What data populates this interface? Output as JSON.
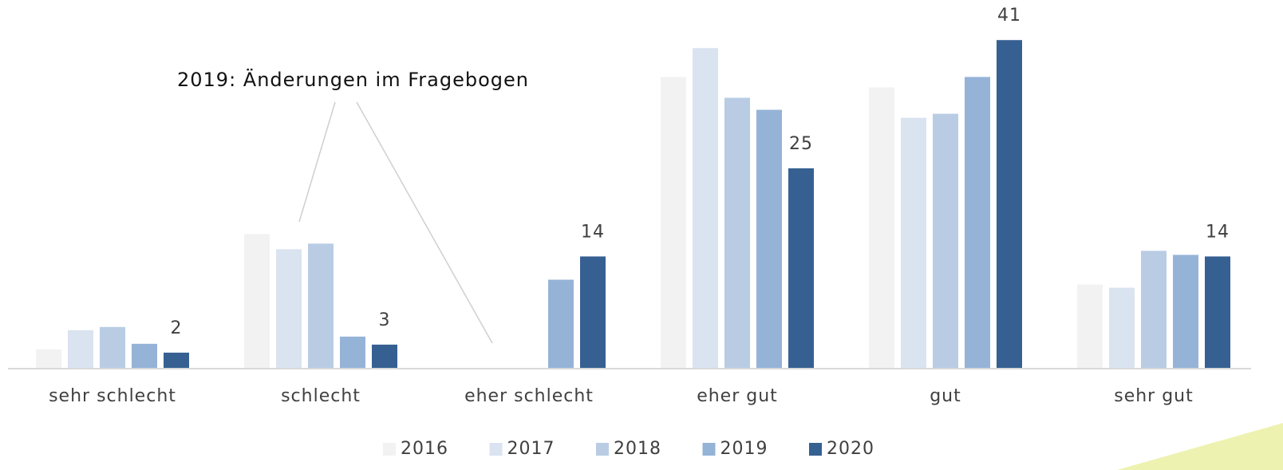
{
  "chart_data": {
    "type": "bar",
    "categories": [
      "sehr schlecht",
      "schlecht",
      "eher schlecht",
      "eher gut",
      "gut",
      "sehr gut"
    ],
    "series": [
      {
        "name": "2016",
        "color": "#f2f2f2",
        "values": [
          2.4,
          16.8,
          null,
          36.4,
          35.1,
          10.5
        ]
      },
      {
        "name": "2017",
        "color": "#dae3f0",
        "values": [
          4.8,
          14.9,
          null,
          40.0,
          31.3,
          10.1
        ]
      },
      {
        "name": "2018",
        "color": "#b9cce4",
        "values": [
          5.2,
          15.6,
          null,
          33.8,
          31.8,
          14.7
        ]
      },
      {
        "name": "2019",
        "color": "#95b3d7",
        "values": [
          3.1,
          4.0,
          11.1,
          32.3,
          36.4,
          14.2
        ]
      },
      {
        "name": "2020",
        "color": "#366092",
        "values": [
          2,
          3,
          14,
          25,
          41,
          14
        ],
        "data_labels": true
      }
    ],
    "ylim": [
      0,
      46
    ],
    "annotation": "2019: Änderungen im Fragebogen",
    "legend": "bottom"
  }
}
